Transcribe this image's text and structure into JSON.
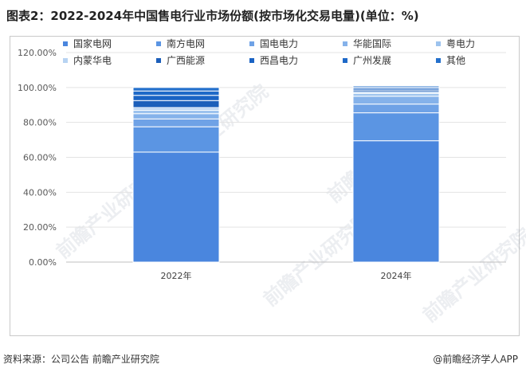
{
  "title": "图表2：2022-2024年中国售电行业市场份额(按市场化交易电量)(单位：%)",
  "source": "资料来源：公司公告  前瞻产业研究院",
  "brand": {
    "icon": "at-icon",
    "text": "@前瞻经济学人APP"
  },
  "watermark": "前瞻产业研究院",
  "chart_data": {
    "type": "stacked-bar",
    "categories": [
      "2022年",
      "2024年"
    ],
    "y_ticks": [
      "0.00%",
      "20.00%",
      "40.00%",
      "60.00%",
      "80.00%",
      "100.00%",
      "120.00%"
    ],
    "ylim": [
      0,
      120
    ],
    "grid": true,
    "legend_position": "bottom",
    "series": [
      {
        "name": "国家电网",
        "color": "#4A86DE",
        "values": [
          63.0,
          69.5
        ]
      },
      {
        "name": "南方电网",
        "color": "#5B95E3",
        "values": [
          14.5,
          16.0
        ]
      },
      {
        "name": "国电电力",
        "color": "#6FA2E6",
        "values": [
          4.5,
          5.0
        ]
      },
      {
        "name": "华能国际",
        "color": "#85B2EA",
        "values": [
          3.0,
          4.5
        ]
      },
      {
        "name": "粤电力",
        "color": "#9DC3EE",
        "values": [
          2.0,
          1.5
        ]
      },
      {
        "name": "内蒙华电",
        "color": "#B7D3F2",
        "values": [
          1.5,
          1.0
        ]
      },
      {
        "name": "广西能源",
        "color": "#1C5FBA",
        "values": [
          4.0,
          1.0
        ]
      },
      {
        "name": "西昌电力",
        "color": "#1A63C4",
        "values": [
          3.0,
          1.0
        ]
      },
      {
        "name": "广州发展",
        "color": "#1E69C8",
        "values": [
          2.5,
          0.8
        ]
      },
      {
        "name": "其他",
        "color": "#2470CC",
        "values": [
          2.0,
          0.7
        ]
      }
    ]
  }
}
